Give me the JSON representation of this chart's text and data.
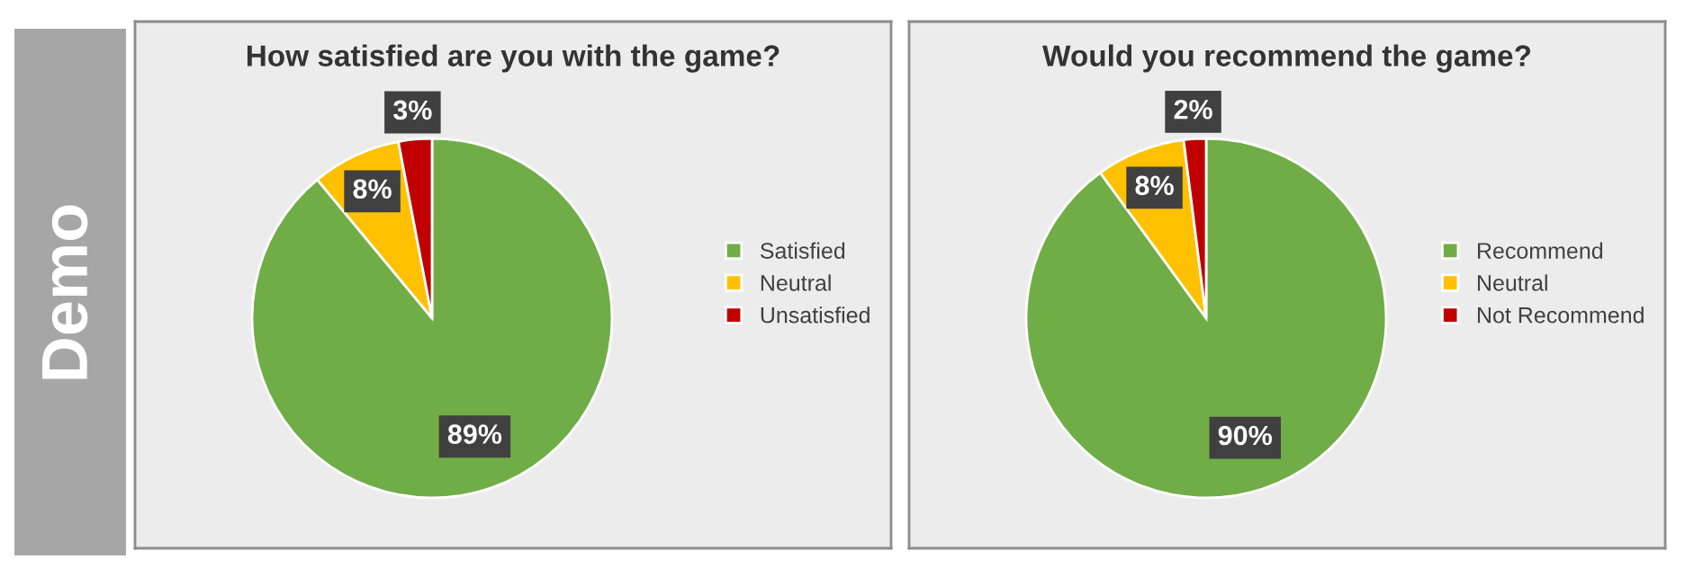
{
  "chart_data": [
    {
      "type": "pie",
      "title": "How satisfied are you with the game?",
      "categories": [
        "Satisfied",
        "Neutral",
        "Unsatisfied"
      ],
      "values": [
        89,
        8,
        3
      ],
      "colors": [
        "#70ad47",
        "#ffc000",
        "#c00000"
      ],
      "value_labels": [
        "89%",
        "8%",
        "3%"
      ],
      "legend": "right",
      "annotations": [
        "Demo"
      ]
    },
    {
      "type": "pie",
      "title": "Would you recommend the game?",
      "categories": [
        "Recommend",
        "Neutral",
        "Not Recommend"
      ],
      "values": [
        90,
        8,
        2
      ],
      "colors": [
        "#70ad47",
        "#ffc000",
        "#c00000"
      ],
      "value_labels": [
        "90%",
        "8%",
        "2%"
      ],
      "legend": "right"
    }
  ]
}
